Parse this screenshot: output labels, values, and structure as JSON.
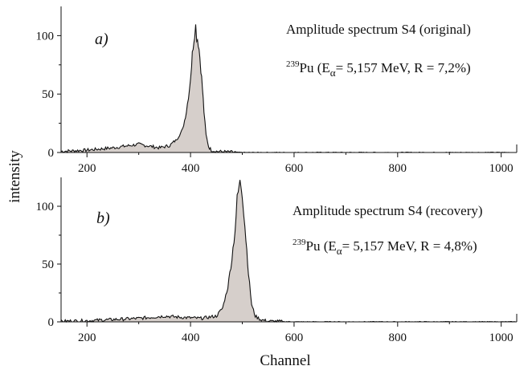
{
  "figure": {
    "ylabel": "intensity",
    "xlabel": "Channel"
  },
  "chart_data": [
    {
      "type": "area",
      "panel_label": "a)",
      "title": "Amplitude spectrum S4 (original)",
      "annotation": {
        "isotope_mass": "239",
        "isotope": "Pu (E",
        "subscript": "α",
        "rest": "= 5,157 MeV, R = 7,2%)"
      },
      "xlabel": "",
      "ylabel": "",
      "xlim": [
        150,
        1030
      ],
      "ylim": [
        0,
        125
      ],
      "xticks": [
        200,
        400,
        600,
        800,
        1000
      ],
      "yticks": [
        0,
        50,
        100
      ],
      "grid": false,
      "line_color": "#111111",
      "fill_color": "#d6cfcb",
      "x": [
        150,
        200,
        250,
        300,
        340,
        360,
        375,
        385,
        392,
        398,
        402,
        405,
        408,
        410,
        412,
        415,
        418,
        420,
        423,
        426,
        430,
        435,
        440,
        450,
        470,
        500,
        600,
        700,
        800,
        900,
        1030
      ],
      "y": [
        1,
        2,
        4,
        7,
        4,
        6,
        12,
        20,
        35,
        55,
        75,
        92,
        104,
        108,
        100,
        95,
        82,
        72,
        55,
        35,
        15,
        5,
        2,
        1,
        0.5,
        0,
        0,
        0,
        0,
        0,
        0
      ]
    },
    {
      "type": "area",
      "panel_label": "b)",
      "title": "Amplitude spectrum S4 (recovery)",
      "annotation": {
        "isotope_mass": "239",
        "isotope": "Pu (E",
        "subscript": "α",
        "rest": "= 5,157 MeV, R = 4,8%)"
      },
      "xlabel": "Channel",
      "ylabel": "",
      "xlim": [
        150,
        1030
      ],
      "ylim": [
        0,
        125
      ],
      "xticks": [
        200,
        400,
        600,
        800,
        1000
      ],
      "yticks": [
        0,
        50,
        100
      ],
      "grid": false,
      "line_color": "#111111",
      "fill_color": "#d6cfcb",
      "x": [
        150,
        200,
        250,
        300,
        350,
        380,
        420,
        450,
        462,
        472,
        480,
        486,
        490,
        494,
        497,
        500,
        503,
        507,
        512,
        518,
        525,
        535,
        550,
        600,
        700,
        800,
        900,
        1030
      ],
      "y": [
        0.5,
        1,
        2,
        3,
        5,
        4,
        3,
        5,
        12,
        30,
        55,
        80,
        105,
        118,
        120,
        112,
        95,
        72,
        42,
        15,
        5,
        2,
        0.5,
        0,
        0,
        0,
        0,
        0
      ]
    }
  ]
}
